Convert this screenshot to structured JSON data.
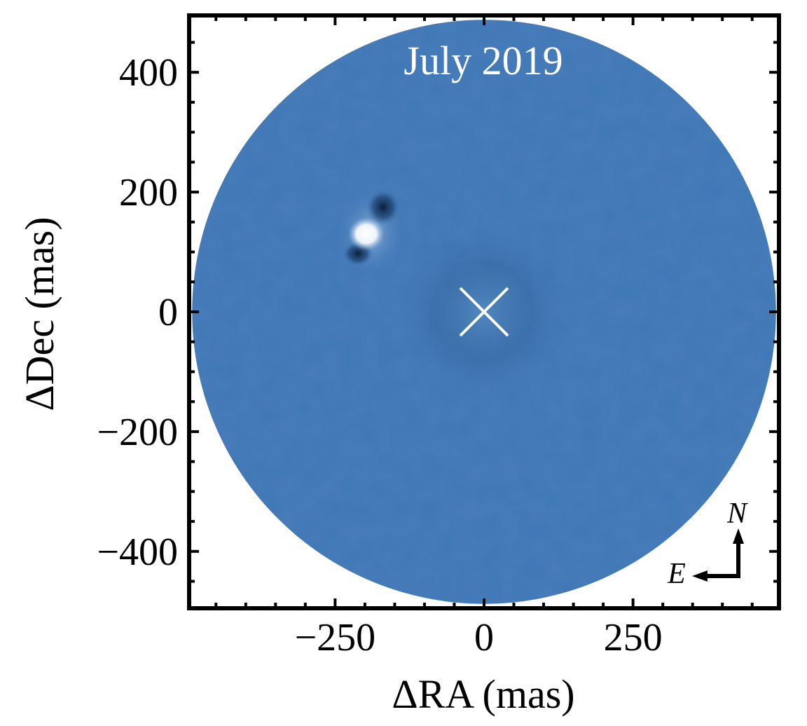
{
  "chart_data": {
    "type": "heatmap",
    "title": "July 2019",
    "xlabel": "ΔRA (mas)",
    "ylabel": "ΔDec (mas)",
    "xlim": [
      -495,
      495
    ],
    "ylim": [
      -495,
      495
    ],
    "x_ticks": [
      -250,
      0,
      250
    ],
    "x_tick_labels": [
      "−250",
      "0",
      "250"
    ],
    "y_ticks": [
      -400,
      -200,
      0,
      200,
      400
    ],
    "y_tick_labels": [
      "−400",
      "−200",
      "0",
      "200",
      "400"
    ],
    "field_radius_mas": 490,
    "background_color": "#3f77b6",
    "star_position": {
      "x": 0,
      "y": 0,
      "marker": "x"
    },
    "companion": {
      "x": -200,
      "y": 130
    },
    "compass": {
      "north_label": "N",
      "east_label": "E"
    },
    "grid": false
  }
}
